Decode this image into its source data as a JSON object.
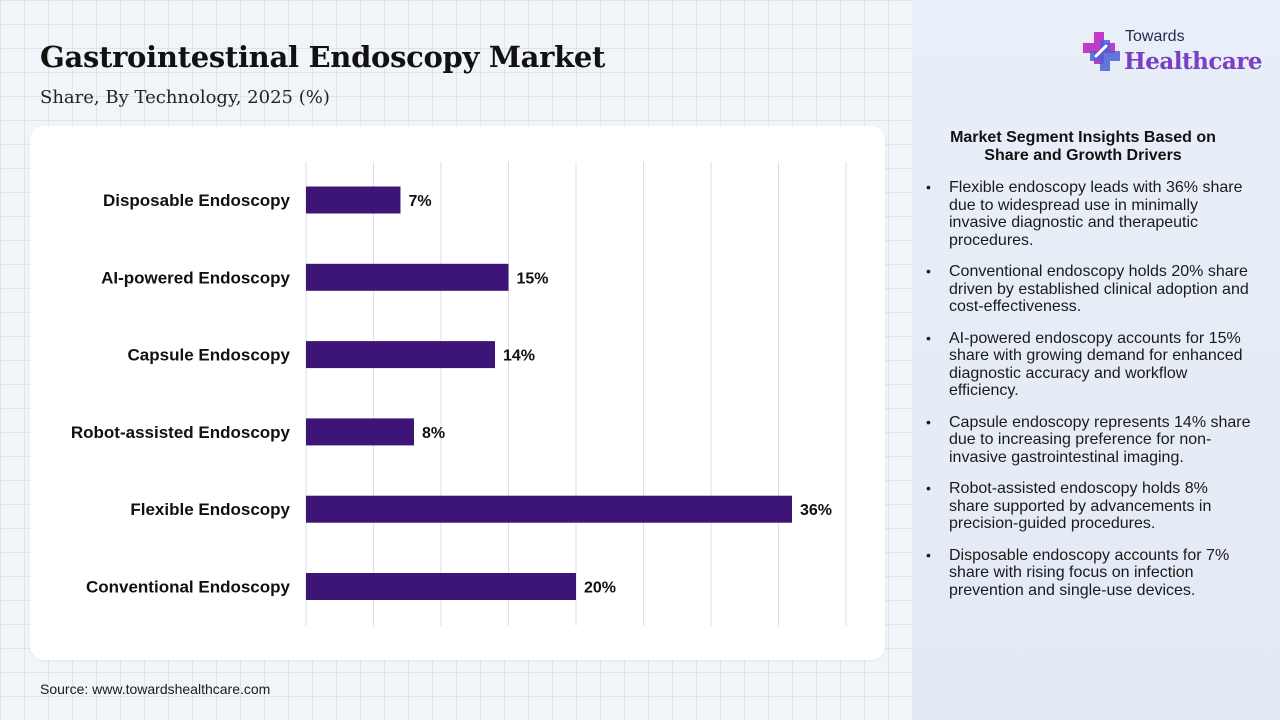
{
  "header": {
    "title": "Gastrointestinal Endoscopy Market",
    "subtitle": "Share, By Technology, 2025 (%)"
  },
  "logo": {
    "top_text": "Towards",
    "main_text": "Healthcare"
  },
  "chart_data": {
    "type": "bar",
    "orientation": "horizontal",
    "categories": [
      "Disposable Endoscopy",
      "AI-powered Endoscopy",
      "Capsule Endoscopy",
      "Robot-assisted Endoscopy",
      "Flexible Endoscopy",
      "Conventional Endoscopy"
    ],
    "values": [
      7,
      15,
      14,
      8,
      36,
      20
    ],
    "value_labels": [
      "7%",
      "15%",
      "14%",
      "8%",
      "36%",
      "20%"
    ],
    "xlim": [
      0,
      40
    ],
    "grid": true,
    "bar_color": "#3c1577"
  },
  "insights": {
    "title": "Market Segment Insights Based on Share and Growth Drivers",
    "items": [
      "Flexible endoscopy leads with 36% share due to widespread use in minimally invasive diagnostic and therapeutic procedures.",
      "Conventional endoscopy holds 20% share driven by established clinical adoption and cost-effectiveness.",
      "AI-powered endoscopy accounts for 15% share with growing demand for enhanced diagnostic accuracy and workflow efficiency.",
      "Capsule endoscopy represents 14% share due to increasing preference for non-invasive gastrointestinal imaging.",
      "Robot-assisted endoscopy holds 8% share supported by advancements in precision-guided procedures.",
      "Disposable endoscopy accounts for 7% share with rising focus on infection prevention and single-use devices."
    ]
  },
  "source": "Source: www.towardshealthcare.com",
  "colors": {
    "bar": "#3c1577",
    "brand_purple": "#7b3fc4",
    "logo_pink": "#c23cc8",
    "logo_blue": "#4b5fd6"
  }
}
